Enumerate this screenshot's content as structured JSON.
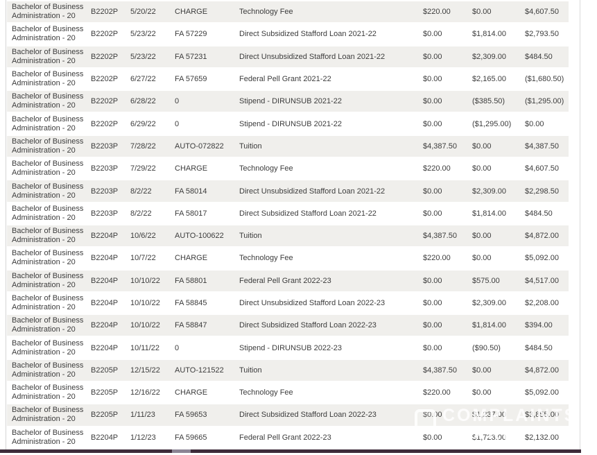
{
  "table": {
    "rows": [
      {
        "program": "Bachelor of Business Administration - 20",
        "term": "B2202P",
        "date": "5/20/22",
        "reference": "CHARGE",
        "description": "Technology Fee",
        "debit": "$220.00",
        "credit": "$0.00",
        "balance": "$4,607.50"
      },
      {
        "program": "Bachelor of Business Administration - 20",
        "term": "B2202P",
        "date": "5/23/22",
        "reference": "FA 57229",
        "description": "Direct Subsidized Stafford Loan 2021-22",
        "debit": "$0.00",
        "credit": "$1,814.00",
        "balance": "$2,793.50"
      },
      {
        "program": "Bachelor of Business Administration - 20",
        "term": "B2202P",
        "date": "5/23/22",
        "reference": "FA 57231",
        "description": "Direct Unsubsidized Stafford Loan 2021-22",
        "debit": "$0.00",
        "credit": "$2,309.00",
        "balance": "$484.50"
      },
      {
        "program": "Bachelor of Business Administration - 20",
        "term": "B2202P",
        "date": "6/27/22",
        "reference": "FA 57659",
        "description": "Federal Pell Grant 2021-22",
        "debit": "$0.00",
        "credit": "$2,165.00",
        "balance": "($1,680.50)"
      },
      {
        "program": "Bachelor of Business Administration - 20",
        "term": "B2202P",
        "date": "6/28/22",
        "reference": "0",
        "description": "Stipend - DIRUNSUB 2021-22",
        "debit": "$0.00",
        "credit": "($385.50)",
        "balance": "($1,295.00)"
      },
      {
        "program": "Bachelor of Business Administration - 20",
        "term": "B2202P",
        "date": "6/29/22",
        "reference": "0",
        "description": "Stipend - DIRUNSUB 2021-22",
        "debit": "$0.00",
        "credit": "($1,295.00)",
        "balance": "$0.00"
      },
      {
        "program": "Bachelor of Business Administration - 20",
        "term": "B2203P",
        "date": "7/28/22",
        "reference": "AUTO-072822",
        "description": "Tuition",
        "debit": "$4,387.50",
        "credit": "$0.00",
        "balance": "$4,387.50"
      },
      {
        "program": "Bachelor of Business Administration - 20",
        "term": "B2203P",
        "date": "7/29/22",
        "reference": "CHARGE",
        "description": "Technology Fee",
        "debit": "$220.00",
        "credit": "$0.00",
        "balance": "$4,607.50"
      },
      {
        "program": "Bachelor of Business Administration - 20",
        "term": "B2203P",
        "date": "8/2/22",
        "reference": "FA 58014",
        "description": "Direct Unsubsidized Stafford Loan 2021-22",
        "debit": "$0.00",
        "credit": "$2,309.00",
        "balance": "$2,298.50"
      },
      {
        "program": "Bachelor of Business Administration - 20",
        "term": "B2203P",
        "date": "8/2/22",
        "reference": "FA 58017",
        "description": "Direct Subsidized Stafford Loan 2021-22",
        "debit": "$0.00",
        "credit": "$1,814.00",
        "balance": "$484.50"
      },
      {
        "program": "Bachelor of Business Administration - 20",
        "term": "B2204P",
        "date": "10/6/22",
        "reference": "AUTO-100622",
        "description": "Tuition",
        "debit": "$4,387.50",
        "credit": "$0.00",
        "balance": "$4,872.00"
      },
      {
        "program": "Bachelor of Business Administration - 20",
        "term": "B2204P",
        "date": "10/7/22",
        "reference": "CHARGE",
        "description": "Technology Fee",
        "debit": "$220.00",
        "credit": "$0.00",
        "balance": "$5,092.00"
      },
      {
        "program": "Bachelor of Business Administration - 20",
        "term": "B2204P",
        "date": "10/10/22",
        "reference": "FA 58801",
        "description": "Federal Pell Grant 2022-23",
        "debit": "$0.00",
        "credit": "$575.00",
        "balance": "$4,517.00"
      },
      {
        "program": "Bachelor of Business Administration - 20",
        "term": "B2204P",
        "date": "10/10/22",
        "reference": "FA 58845",
        "description": "Direct Unsubsidized Stafford Loan 2022-23",
        "debit": "$0.00",
        "credit": "$2,309.00",
        "balance": "$2,208.00"
      },
      {
        "program": "Bachelor of Business Administration - 20",
        "term": "B2204P",
        "date": "10/10/22",
        "reference": "FA 58847",
        "description": "Direct Subsidized Stafford Loan 2022-23",
        "debit": "$0.00",
        "credit": "$1,814.00",
        "balance": "$394.00"
      },
      {
        "program": "Bachelor of Business Administration - 20",
        "term": "B2204P",
        "date": "10/11/22",
        "reference": "0",
        "description": "Stipend - DIRUNSUB 2022-23",
        "debit": "$0.00",
        "credit": "($90.50)",
        "balance": "$484.50"
      },
      {
        "program": "Bachelor of Business Administration - 20",
        "term": "B2205P",
        "date": "12/15/22",
        "reference": "AUTO-121522",
        "description": "Tuition",
        "debit": "$4,387.50",
        "credit": "$0.00",
        "balance": "$4,872.00"
      },
      {
        "program": "Bachelor of Business Administration - 20",
        "term": "B2205P",
        "date": "12/16/22",
        "reference": "CHARGE",
        "description": "Technology Fee",
        "debit": "$220.00",
        "credit": "$0.00",
        "balance": "$5,092.00"
      },
      {
        "program": "Bachelor of Business Administration - 20",
        "term": "B2205P",
        "date": "1/11/23",
        "reference": "FA 59653",
        "description": "Direct Subsidized Stafford Loan 2022-23",
        "debit": "$0.00",
        "credit": "$1,237.00",
        "balance": "$3,855.00"
      },
      {
        "program": "Bachelor of Business Administration - 20",
        "term": "B2204P",
        "date": "1/12/23",
        "reference": "FA 59665",
        "description": "Federal Pell Grant 2022-23",
        "debit": "$0.00",
        "credit": "$1,723.00",
        "balance": "$2,132.00"
      }
    ]
  },
  "watermark": {
    "line1": "COMPLAINTS",
    "line2": "BOARD"
  },
  "colors": {
    "row_alt": "#f0efec",
    "row": "#ffffff",
    "text": "#3c3c3c",
    "scrollbar_track": "#3e2b3a",
    "scrollbar_thumb": "#8d8595",
    "panel_border": "#d4d4d4"
  }
}
